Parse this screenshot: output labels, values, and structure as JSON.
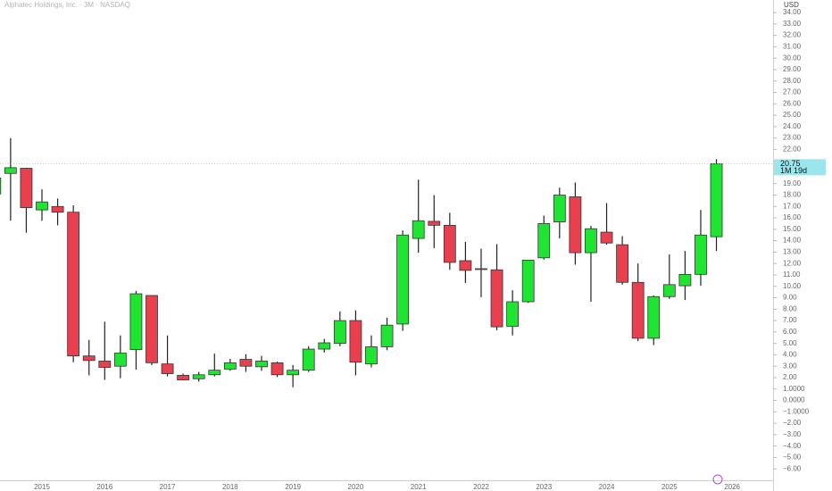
{
  "chart_data": {
    "type": "candlestick",
    "title": "Alphatec Holdings, Inc. · 3M · NASDAQ",
    "y_axis_label": "USD",
    "up_color": "#1fe532",
    "down_color": "#e8404f",
    "last_price": 20.75,
    "countdown": "1M 19d",
    "categories": [
      null,
      null,
      null,
      "2015",
      null,
      null,
      null,
      "2016",
      null,
      null,
      null,
      "2017",
      null,
      null,
      null,
      "2018",
      null,
      null,
      null,
      "2019",
      null,
      null,
      null,
      "2020",
      null,
      null,
      null,
      "2021",
      null,
      null,
      null,
      "2022",
      null,
      null,
      null,
      "2023",
      null,
      null,
      null,
      "2024",
      null,
      null,
      null,
      "2025",
      null,
      null,
      null,
      "2026"
    ],
    "open": [
      18.1,
      19.9,
      20.35,
      16.7,
      17.0,
      16.5,
      3.9,
      3.45,
      3.0,
      4.45,
      9.2,
      3.2,
      2.2,
      1.9,
      2.25,
      2.75,
      3.6,
      2.95,
      3.3,
      2.25,
      2.65,
      4.5,
      5.0,
      7.0,
      3.2,
      4.7,
      6.7,
      14.2,
      15.7,
      15.35,
      12.25,
      11.5,
      11.45,
      6.5,
      8.65,
      12.5,
      15.65,
      17.85,
      12.95,
      14.75,
      13.65,
      10.35,
      5.45,
      9.1,
      10.05,
      11.05,
      14.35,
      null
    ],
    "high": [
      19.9,
      23.0,
      20.4,
      18.5,
      17.7,
      17.1,
      5.3,
      6.9,
      5.7,
      9.6,
      9.2,
      5.7,
      2.35,
      2.5,
      4.1,
      3.65,
      4.05,
      3.9,
      3.4,
      3.1,
      4.75,
      5.4,
      7.8,
      7.9,
      5.7,
      7.25,
      14.9,
      19.35,
      18.0,
      16.45,
      13.9,
      13.3,
      13.7,
      9.65,
      12.3,
      16.2,
      18.65,
      19.1,
      15.3,
      17.3,
      14.4,
      12.0,
      9.2,
      12.8,
      13.1,
      16.7,
      21.15,
      null
    ],
    "low": [
      17.6,
      15.75,
      14.7,
      15.75,
      15.35,
      3.35,
      2.2,
      1.8,
      1.95,
      2.7,
      3.1,
      2.1,
      1.75,
      1.65,
      2.1,
      2.6,
      2.5,
      2.6,
      2.05,
      1.15,
      2.5,
      4.2,
      4.75,
      2.2,
      2.9,
      4.4,
      6.1,
      12.95,
      13.35,
      11.45,
      10.3,
      9.05,
      6.15,
      5.7,
      8.55,
      12.35,
      14.2,
      11.9,
      8.65,
      13.65,
      10.15,
      5.2,
      4.85,
      8.9,
      8.8,
      10.05,
      13.1,
      null
    ],
    "close": [
      19.5,
      20.4,
      16.9,
      17.4,
      16.5,
      3.9,
      3.5,
      2.9,
      4.15,
      9.35,
      3.3,
      2.35,
      1.8,
      2.25,
      2.65,
      3.3,
      3.0,
      3.45,
      2.25,
      2.65,
      4.5,
      5.05,
      7.0,
      3.35,
      4.7,
      6.6,
      14.5,
      15.75,
      15.35,
      12.1,
      11.4,
      11.55,
      6.45,
      8.65,
      12.3,
      15.5,
      18.0,
      12.95,
      15.05,
      13.8,
      10.35,
      5.45,
      9.1,
      10.15,
      11.05,
      14.5,
      20.75,
      null
    ],
    "ylim": [
      -7.0,
      35.1
    ],
    "yticks": [
      {
        "value": 34,
        "label": "34.00"
      },
      {
        "value": 33,
        "label": "33.00"
      },
      {
        "value": 32,
        "label": "32.00"
      },
      {
        "value": 31,
        "label": "31.00"
      },
      {
        "value": 30,
        "label": "30.00"
      },
      {
        "value": 29,
        "label": "29.00"
      },
      {
        "value": 28,
        "label": "28.00"
      },
      {
        "value": 27,
        "label": "27.00"
      },
      {
        "value": 26,
        "label": "26.00"
      },
      {
        "value": 25,
        "label": "25.00"
      },
      {
        "value": 24,
        "label": "24.00"
      },
      {
        "value": 23,
        "label": "23.00"
      },
      {
        "value": 22,
        "label": "22.00"
      },
      {
        "value": 19,
        "label": "19.00"
      },
      {
        "value": 18,
        "label": "18.00"
      },
      {
        "value": 17,
        "label": "17.00"
      },
      {
        "value": 16,
        "label": "16.00"
      },
      {
        "value": 15,
        "label": "15.00"
      },
      {
        "value": 14,
        "label": "14.00"
      },
      {
        "value": 13,
        "label": "13.00"
      },
      {
        "value": 12,
        "label": "12.00"
      },
      {
        "value": 11,
        "label": "11.00"
      },
      {
        "value": 10,
        "label": "10.00"
      },
      {
        "value": 9,
        "label": "9.00"
      },
      {
        "value": 8,
        "label": "8.00"
      },
      {
        "value": 7,
        "label": "7.00"
      },
      {
        "value": 6,
        "label": "6.00"
      },
      {
        "value": 5,
        "label": "5.00"
      },
      {
        "value": 4,
        "label": "4.00"
      },
      {
        "value": 3,
        "label": "3.00"
      },
      {
        "value": 2,
        "label": "2.00"
      },
      {
        "value": 1,
        "label": "1.0000"
      },
      {
        "value": 0,
        "label": "0.0000"
      },
      {
        "value": -1,
        "label": "−1.0000"
      },
      {
        "value": -2,
        "label": "−2.00"
      },
      {
        "value": -3,
        "label": "−3.00"
      },
      {
        "value": -4,
        "label": "−4.00"
      },
      {
        "value": -5,
        "label": "−5.00"
      },
      {
        "value": -6,
        "label": "−6.00"
      }
    ]
  }
}
